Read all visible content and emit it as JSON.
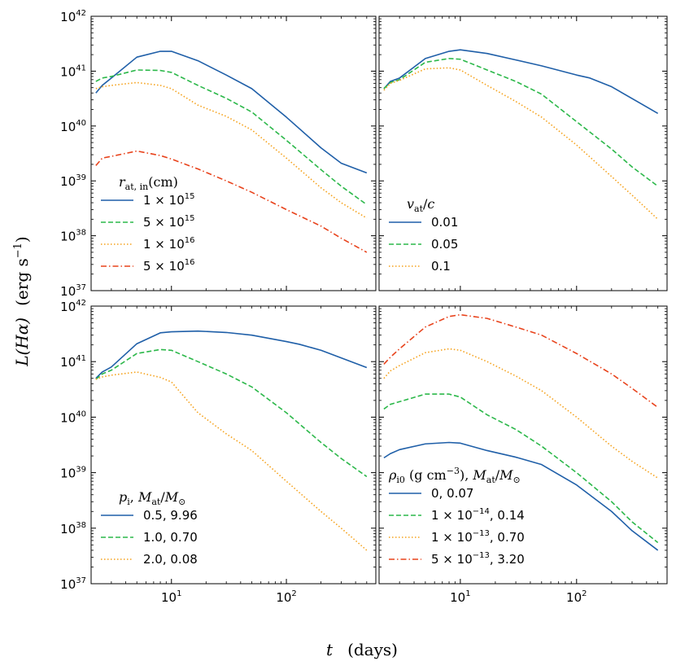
{
  "figure": {
    "xlabel_var": "t",
    "xlabel_unit": "(days)",
    "ylabel_var": "L(Hα)",
    "ylabel_unit_text": "(erg s",
    "ylabel_unit_exp": "−1",
    "ylabel_unit_close": ")"
  },
  "colors": {
    "blue": "#1f5fa8",
    "green": "#2cb84a",
    "orange": "#f5a21c",
    "red": "#e8431c"
  },
  "chart_data": [
    {
      "type": "line",
      "panel": "top-left",
      "xscale": "log",
      "yscale": "log",
      "xlim": [
        2,
        600
      ],
      "ylim": [
        1e+37,
        1e+42
      ],
      "legend_title_main": "r",
      "legend_title_sub": "at, in",
      "legend_title_rest": "(cm)",
      "legend_position": "lower-left",
      "series": [
        {
          "name_mant": "1 × 10",
          "name_exp": "15",
          "color": "blue",
          "style": "solid",
          "x": [
            2.2,
            2.5,
            3,
            5,
            8,
            10,
            17,
            30,
            50,
            100,
            200,
            300,
            500
          ],
          "y": [
            4e+40,
            5.5e+40,
            7.5e+40,
            1.8e+41,
            2.3e+41,
            2.3e+41,
            1.55e+41,
            8.5e+40,
            4.8e+40,
            1.45e+40,
            4e+39,
            2.1e+39,
            1.4e+39
          ]
        },
        {
          "name_mant": "5 × 10",
          "name_exp": "15",
          "color": "green",
          "style": "dashed",
          "x": [
            2.2,
            2.5,
            3,
            5,
            8,
            10,
            17,
            30,
            50,
            100,
            200,
            300,
            500
          ],
          "y": [
            6.5e+40,
            7.5e+40,
            8e+40,
            1.05e+41,
            1.03e+41,
            9.5e+40,
            5.5e+40,
            3.2e+40,
            1.8e+40,
            5.5e+39,
            1.6e+39,
            8e+38,
            3.7e+38
          ]
        },
        {
          "name_mant": "1 × 10",
          "name_exp": "16",
          "color": "orange",
          "style": "dotted",
          "x": [
            2.2,
            2.5,
            3,
            5,
            8,
            10,
            17,
            30,
            50,
            100,
            200,
            300,
            500
          ],
          "y": [
            4.8e+40,
            5.2e+40,
            5.5e+40,
            6.2e+40,
            5.5e+40,
            4.8e+40,
            2.4e+40,
            1.5e+40,
            8.5e+39,
            2.6e+39,
            7.5e+38,
            4e+38,
            2.1e+38
          ]
        },
        {
          "name_mant": "5 × 10",
          "name_exp": "16",
          "color": "red",
          "style": "dashdot",
          "x": [
            2.2,
            2.5,
            3,
            5,
            8,
            10,
            17,
            30,
            50,
            100,
            200,
            300,
            500
          ],
          "y": [
            1.9e+39,
            2.6e+39,
            2.8e+39,
            3.5e+39,
            2.9e+39,
            2.5e+39,
            1.65e+39,
            1e+39,
            6.2e+38,
            3e+38,
            1.5e+38,
            9e+37,
            5e+37
          ]
        }
      ]
    },
    {
      "type": "line",
      "panel": "top-right",
      "xscale": "log",
      "yscale": "log",
      "xlim": [
        2,
        600
      ],
      "ylim": [
        1e+37,
        1e+42
      ],
      "legend_title_main": "v",
      "legend_title_sub": "at",
      "legend_title_rest": "/c",
      "legend_position": "lower-left",
      "series": [
        {
          "name": "0.01",
          "color": "blue",
          "style": "solid",
          "x": [
            2.2,
            2.5,
            3,
            5,
            8,
            10,
            17,
            30,
            50,
            100,
            130,
            200,
            500
          ],
          "y": [
            4.8e+40,
            6.5e+40,
            7.5e+40,
            1.7e+41,
            2.3e+41,
            2.45e+41,
            2.1e+41,
            1.6e+41,
            1.25e+41,
            8.5e+40,
            7.5e+40,
            5.2e+40,
            1.7e+40
          ]
        },
        {
          "name": "0.05",
          "color": "green",
          "style": "dashed",
          "x": [
            2.2,
            2.5,
            3,
            5,
            8,
            10,
            17,
            30,
            50,
            100,
            200,
            300,
            500
          ],
          "y": [
            4.8e+40,
            6.2e+40,
            7e+40,
            1.45e+41,
            1.7e+41,
            1.65e+41,
            1.05e+41,
            6.5e+40,
            3.8e+40,
            1.2e+40,
            3.8e+39,
            1.8e+39,
            8e+38
          ]
        },
        {
          "name": "0.1",
          "color": "orange",
          "style": "dotted",
          "x": [
            2.2,
            2.5,
            3,
            5,
            8,
            10,
            17,
            30,
            50,
            100,
            200,
            300,
            500
          ],
          "y": [
            4.5e+40,
            6e+40,
            6.8e+40,
            1.1e+41,
            1.15e+41,
            1.05e+41,
            5.5e+40,
            2.8e+40,
            1.45e+40,
            4.5e+39,
            1.2e+39,
            5.5e+38,
            2e+38
          ]
        }
      ]
    },
    {
      "type": "line",
      "panel": "bottom-left",
      "xscale": "log",
      "yscale": "log",
      "xlim": [
        2,
        600
      ],
      "ylim": [
        1e+37,
        1e+42
      ],
      "legend_title_main": "p",
      "legend_title_sub": "i",
      "legend_title_rest": ", M",
      "legend_title_sub2": "at",
      "legend_title_rest2": "/M",
      "legend_title_sub3": "⊙",
      "legend_position": "lower-left",
      "series": [
        {
          "name": "0.5, 9.96",
          "color": "blue",
          "style": "solid",
          "x": [
            2.2,
            2.5,
            3,
            5,
            8,
            10,
            17,
            30,
            50,
            100,
            130,
            200,
            500
          ],
          "y": [
            5e+40,
            6.5e+40,
            8e+40,
            2.1e+41,
            3.3e+41,
            3.45e+41,
            3.55e+41,
            3.35e+41,
            3e+41,
            2.3e+41,
            2.05e+41,
            1.6e+41,
            7.8e+40
          ]
        },
        {
          "name": "1.0, 0.70",
          "color": "green",
          "style": "dashed",
          "x": [
            2.2,
            2.5,
            3,
            5,
            8,
            10,
            17,
            30,
            50,
            100,
            200,
            300,
            500
          ],
          "y": [
            4.8e+40,
            6e+40,
            7e+40,
            1.4e+41,
            1.65e+41,
            1.6e+41,
            1e+41,
            6e+40,
            3.5e+40,
            1.2e+40,
            3.5e+39,
            1.8e+39,
            8.5e+38
          ]
        },
        {
          "name": "2.0, 0.08",
          "color": "orange",
          "style": "dotted",
          "x": [
            2.2,
            2.5,
            3,
            5,
            8,
            10,
            17,
            30,
            50,
            100,
            200,
            300,
            500
          ],
          "y": [
            4.8e+40,
            5.3e+40,
            5.7e+40,
            6.5e+40,
            5.2e+40,
            4.3e+40,
            1.2e+40,
            5e+39,
            2.5e+39,
            7e+38,
            2e+38,
            1e+38,
            4e+37
          ]
        }
      ]
    },
    {
      "type": "line",
      "panel": "bottom-right",
      "xscale": "log",
      "yscale": "log",
      "xlim": [
        2,
        600
      ],
      "ylim": [
        1e+37,
        1e+42
      ],
      "legend_title_main": "ρ",
      "legend_title_sub": "i0",
      "legend_title_rest": " (g cm",
      "legend_title_exp": "−3",
      "legend_title_rest2": "), M",
      "legend_title_sub2": "at",
      "legend_title_rest3": "/M",
      "legend_title_sub3": "⊙",
      "legend_position": "lower-left",
      "series": [
        {
          "name": "0, 0.07",
          "color": "blue",
          "style": "solid",
          "x": [
            2.2,
            2.5,
            3,
            5,
            8,
            10,
            17,
            30,
            50,
            100,
            200,
            300,
            500
          ],
          "y": [
            1.85e+39,
            2.2e+39,
            2.6e+39,
            3.3e+39,
            3.5e+39,
            3.4e+39,
            2.5e+39,
            1.9e+39,
            1.4e+39,
            6e+38,
            2e+38,
            9e+37,
            4e+37
          ]
        },
        {
          "name_mant": "1 × 10",
          "name_exp": "−14",
          "name_rest": ", 0.14",
          "color": "green",
          "style": "dashed",
          "x": [
            2.2,
            2.5,
            3,
            5,
            8,
            10,
            17,
            30,
            50,
            100,
            200,
            300,
            500
          ],
          "y": [
            1.4e+40,
            1.7e+40,
            1.9e+40,
            2.6e+40,
            2.6e+40,
            2.3e+40,
            1.1e+40,
            6e+39,
            3e+39,
            1e+39,
            3e+38,
            1.3e+38,
            5.5e+37
          ]
        },
        {
          "name_mant": "1 × 10",
          "name_exp": "−13",
          "name_rest": ", 0.70",
          "color": "orange",
          "style": "dotted",
          "x": [
            2.2,
            2.5,
            3,
            5,
            8,
            10,
            17,
            30,
            50,
            100,
            200,
            300,
            500
          ],
          "y": [
            5e+40,
            6.8e+40,
            8.5e+40,
            1.45e+41,
            1.7e+41,
            1.6e+41,
            1e+41,
            5.5e+40,
            3e+40,
            1e+40,
            3e+39,
            1.6e+39,
            8e+38
          ]
        },
        {
          "name_mant": "5 × 10",
          "name_exp": "−13",
          "name_rest": ", 3.20",
          "color": "red",
          "style": "dashdot",
          "x": [
            2.2,
            2.5,
            3,
            5,
            8,
            10,
            17,
            30,
            50,
            100,
            200,
            300,
            500
          ],
          "y": [
            9e+40,
            1.2e+41,
            1.7e+41,
            4.2e+41,
            6.5e+41,
            7e+41,
            6e+41,
            4.2e+41,
            3e+41,
            1.4e+41,
            6e+40,
            3.3e+40,
            1.5e+40
          ]
        }
      ]
    }
  ]
}
